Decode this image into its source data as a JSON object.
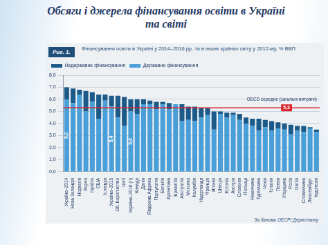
{
  "slide": {
    "title": "Обсяги і джерела фінансування освіти в Україні та світі",
    "figure_label": "Рис. 1.",
    "source": "За даними ОЕСР/ Держстату"
  },
  "chart_data": {
    "type": "bar",
    "title": "Фінансування освіти в Україні у 2014–2016 рр. та в інших країнах світу у 2012-му, % ВВП",
    "categories": [
      "Україна–2014",
      "Нова Зеландія",
      "Норвегія",
      "Корея",
      "Ізраїль",
      "США",
      "Ісландія",
      "Україна–2015",
      "Об. Королівство",
      "Чилі",
      "Україна–2016 (п)",
      "Канада",
      "Данія",
      "Південна Африка",
      "Португалія",
      "Бельгія",
      "Аргентина",
      "Бразилія",
      "Австралія",
      "Мексика",
      "Колумбія",
      "Нідерланди",
      "Франція",
      "Японія",
      "Швеція",
      "Естонія",
      "Австрія",
      "Словенія",
      "Польща",
      "Німеччина",
      "Туреччина",
      "Чехія",
      "Іспанія",
      "Латвія",
      "Угорщина",
      "Росія",
      "Італія",
      "Словаччина",
      "Люксембург",
      "Індонезія"
    ],
    "series": [
      {
        "name": "Державне фінансування",
        "color": "#4a9fd8",
        "values": [
          6.0,
          5.7,
          6.4,
          5.0,
          5.8,
          4.4,
          5.9,
          5.4,
          4.5,
          3.8,
          5.0,
          4.8,
          5.6,
          5.6,
          5.2,
          5.6,
          5.2,
          5.6,
          4.2,
          4.3,
          4.2,
          4.5,
          4.7,
          3.5,
          4.8,
          4.5,
          4.7,
          4.3,
          4.0,
          3.8,
          3.4,
          3.7,
          3.4,
          3.6,
          3.5,
          3.1,
          3.4,
          3.3,
          3.6,
          3.3
        ],
        "value_labels": [
          "6,0",
          null,
          null,
          null,
          null,
          null,
          null,
          "5,4",
          null,
          null,
          "5,0",
          null,
          null,
          null,
          null,
          null,
          null,
          null,
          null,
          null,
          null,
          null,
          null,
          null,
          null,
          null,
          null,
          null,
          null,
          null,
          null,
          null,
          null,
          null,
          null,
          null,
          null,
          null,
          null,
          null
        ]
      },
      {
        "name": "Недержавне фінансування",
        "color": "#1c5a8a",
        "values": [
          1.0,
          1.2,
          0.4,
          1.7,
          0.8,
          2.0,
          0.5,
          0.9,
          1.8,
          2.4,
          1.0,
          1.2,
          0.4,
          0.3,
          0.6,
          0.2,
          0.5,
          0.0,
          1.4,
          1.1,
          1.2,
          0.8,
          0.6,
          1.5,
          0.2,
          0.4,
          0.2,
          0.5,
          0.5,
          0.6,
          1.0,
          0.6,
          0.8,
          0.5,
          0.5,
          0.8,
          0.4,
          0.5,
          0.1,
          0.2
        ]
      }
    ],
    "stacked": true,
    "data_labels": true,
    "legend": "top",
    "grid": true,
    "ylim": [
      0,
      8
    ],
    "yticks": [
      {
        "value": 0,
        "label": "0,0"
      },
      {
        "value": 1,
        "label": "1,0"
      },
      {
        "value": 2,
        "label": "2,0"
      },
      {
        "value": 3,
        "label": "3,0"
      },
      {
        "value": 4,
        "label": "4,0"
      },
      {
        "value": 5,
        "label": "5,0"
      },
      {
        "value": 6,
        "label": "6,0"
      },
      {
        "value": 7,
        "label": "7,0"
      },
      {
        "value": 8,
        "label": "8,0"
      }
    ],
    "annotations": [
      {
        "text": "ОЕСD середнє (загальні витрати)",
        "value": 5.3,
        "value_label": "5,3",
        "color": "#d9262b"
      }
    ]
  }
}
